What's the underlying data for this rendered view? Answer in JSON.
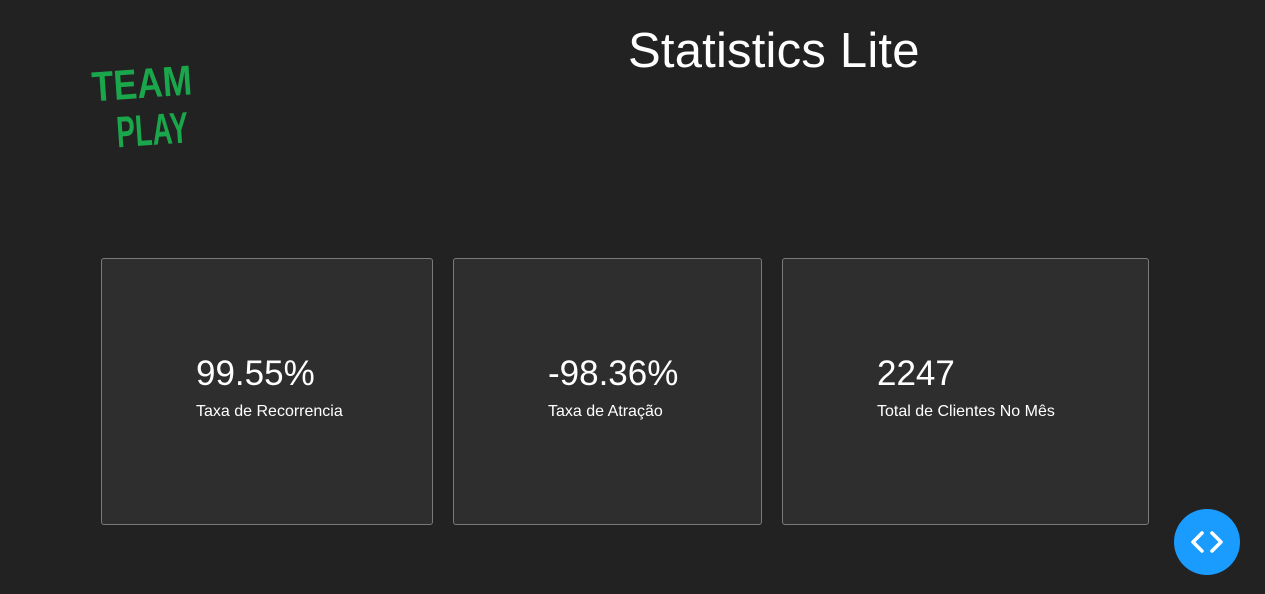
{
  "header": {
    "title": "Statistics Lite",
    "logo": {
      "icon": "team-play-logo",
      "line1": "TEAM",
      "line2": "PLAY",
      "color": "#1aa64b"
    }
  },
  "cards": [
    {
      "value": "99.55%",
      "label": "Taxa de Recorrencia"
    },
    {
      "value": "-98.36%",
      "label": "Taxa de Atração"
    },
    {
      "value": "2247",
      "label": "Total de Clientes No Mês"
    }
  ],
  "floating_button": {
    "icon": "code-brackets-icon",
    "color": "#1a9cff"
  },
  "colors": {
    "background": "#222222",
    "card_background": "#2e2e2e",
    "card_border": "#7a7a7a",
    "text": "#ffffff"
  }
}
